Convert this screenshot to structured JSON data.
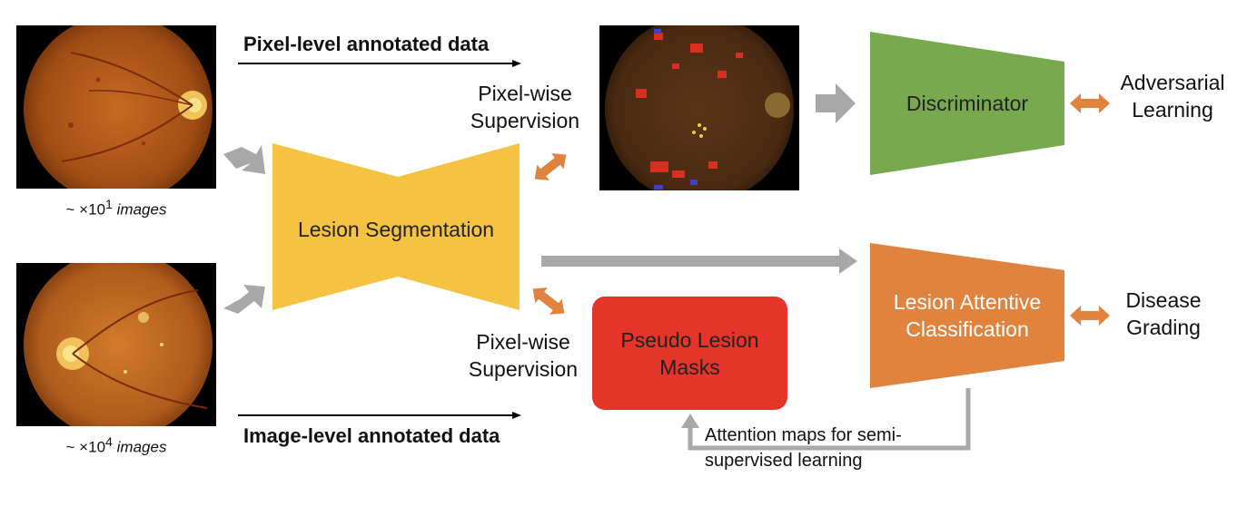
{
  "labels": {
    "pixel_level_data": "Pixel-level annotated data",
    "image_level_data": "Image-level annotated data",
    "pixel_supervision_top_line1": "Pixel-wise",
    "pixel_supervision_top_line2": "Supervision",
    "pixel_supervision_bottom_line1": "Pixel-wise",
    "pixel_supervision_bottom_line2": "Supervision",
    "lesion_segmentation": "Lesion Segmentation",
    "discriminator": "Discriminator",
    "adversarial_line1": "Adversarial",
    "adversarial_line2": "Learning",
    "lesion_attentive_line1": "Lesion Attentive",
    "lesion_attentive_line2": "Classification",
    "disease_line1": "Disease",
    "disease_line2": "Grading",
    "pseudo_line1": "Pseudo Lesion",
    "pseudo_line2": "Masks",
    "attention_line1": "Attention maps for semi-",
    "attention_line2": "supervised learning",
    "caption_top_prefix": "~ ×10",
    "caption_top_exp": "1",
    "caption_top_suffix": "images",
    "caption_bottom_prefix": "~ ×10",
    "caption_bottom_exp": "4",
    "caption_bottom_suffix": "images"
  },
  "colors": {
    "segmentation": "#F5C242",
    "discriminator": "#78A94E",
    "classification": "#E0833F",
    "pseudo_masks": "#E5342A",
    "gray_arrow": "#A8A8A8",
    "orange_arrow": "#E0833F"
  }
}
